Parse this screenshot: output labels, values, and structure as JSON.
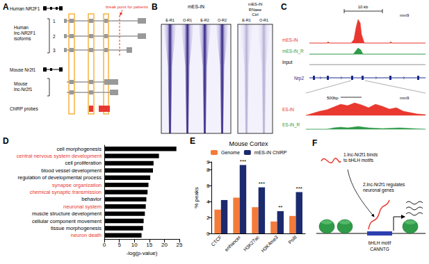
{
  "panel_labels": [
    "A",
    "B",
    "C",
    "D",
    "E",
    "F"
  ],
  "panel_A": {
    "human_gene": "Human NR2F1",
    "human_isoforms": [
      "Human",
      "lnc-NR2F1",
      "isoforms"
    ],
    "isoform_numbers": [
      "1",
      "2",
      "3"
    ],
    "breakpoint": "break point for patients",
    "mouse_gene": "Mouse Nr2f1",
    "mouse_lnc": [
      "Mouse",
      "lnc-Nr2f1"
    ],
    "probes": "ChIRP probes"
  },
  "panel_B": {
    "group1": "mES-iN",
    "group2": [
      "mES-iN",
      "RNase",
      "Ctrl"
    ],
    "lanes1": [
      "E-R1",
      "O-R1",
      "E-R2",
      "O-R2"
    ],
    "lanes2": [
      "E-R1",
      "O-R1"
    ]
  },
  "panel_C": {
    "scale_top": "10 kb",
    "genome_top": "mm9",
    "tracks_top": [
      "mES-iN",
      "mES-iN_R",
      "Input"
    ],
    "gene": "Nrp2",
    "scale_bottom": "500bp",
    "genome_bottom": "mm9",
    "tracks_bottom": [
      "ES-iN",
      "ES-iN_R"
    ]
  },
  "chart_data": [
    {
      "type": "bar",
      "orientation": "horizontal",
      "categories": [
        "cell morphogenesis",
        "central nervous system development",
        "cell proliferation",
        "blood vessel development",
        "regulation of developmental process",
        "synapse organization",
        "chemical synaptic transmission",
        "behavior",
        "neuronal system",
        "muscle structure development",
        "cellular component movement",
        "tissue morphogenesis",
        "neuron death"
      ],
      "values": [
        24,
        18.2,
        16.4,
        16.2,
        15.3,
        14.7,
        14.4,
        14,
        13.8,
        13.5,
        13.1,
        12.9,
        12.4
      ],
      "color": "#000000",
      "label_colors": [
        "#000000",
        "#e8382f",
        "#000000",
        "#000000",
        "#000000",
        "#e8382f",
        "#e8382f",
        "#000000",
        "#e8382f",
        "#000000",
        "#000000",
        "#000000",
        "#e8382f"
      ],
      "xlabel": "-log(p-value)",
      "xlim": [
        0,
        25
      ],
      "xticks": [
        0,
        5,
        10,
        15,
        20,
        25
      ]
    },
    {
      "type": "bar",
      "title": "Mouse Cortex",
      "categories": [
        "CTCF",
        "enhancer",
        "H3K27ac",
        "H3K4me3",
        "PolII"
      ],
      "series": [
        {
          "name": "Genome",
          "color": "#f47a3a",
          "values": [
            3.0,
            4.5,
            3.3,
            1.5,
            2.2
          ]
        },
        {
          "name": "mES-iN ChIRP",
          "color": "#1c2a6e",
          "values": [
            4.2,
            8.6,
            5.8,
            2.8,
            5.2
          ]
        }
      ],
      "annotations": [
        null,
        "***",
        "***",
        "**",
        "***"
      ],
      "ylabel": "% peaks",
      "ylim": [
        0,
        9
      ],
      "yticks": [
        0,
        2,
        4,
        6,
        8
      ],
      "legend": "top-left"
    }
  ],
  "panel_F": {
    "step1": [
      "1.lnc-Nr2f1 binds",
      "to bHLH motifs"
    ],
    "step2": [
      "2.lnc-Nr2f1 regulates",
      "neuronal genes"
    ],
    "motif": [
      "bHLH motif",
      "CANNTG"
    ]
  }
}
